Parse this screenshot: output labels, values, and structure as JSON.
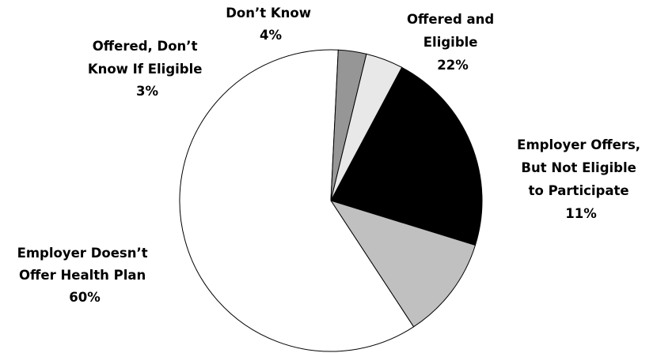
{
  "chart_data": {
    "type": "pie",
    "title": "",
    "slices": [
      {
        "label_lines": [
          "Offered and",
          "Eligible"
        ],
        "pct_label": "22%",
        "value": 22,
        "color": "#000000"
      },
      {
        "label_lines": [
          "Employer Offers,",
          "But Not Eligible",
          "to Participate"
        ],
        "pct_label": "11%",
        "value": 11,
        "color": "#c0c0c0"
      },
      {
        "label_lines": [
          "Employer Doesn’t",
          "Offer Health Plan"
        ],
        "pct_label": "60%",
        "value": 60,
        "color": "#ffffff"
      },
      {
        "label_lines": [
          "Offered, Don’t",
          "Know If Eligible"
        ],
        "pct_label": "3%",
        "value": 3,
        "color": "#969696"
      },
      {
        "label_lines": [
          "Don’t Know"
        ],
        "pct_label": "4%",
        "value": 4,
        "color": "#e8e8e8"
      }
    ]
  }
}
